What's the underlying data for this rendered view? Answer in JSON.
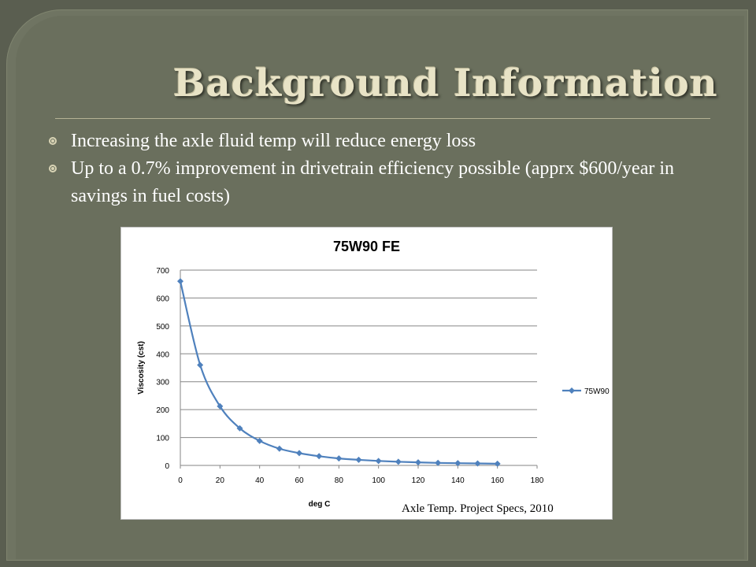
{
  "slide": {
    "title": "Background Information",
    "bullets": [
      "Increasing the axle fluid temp will reduce energy loss",
      "Up to a 0.7% improvement in drivetrain efficiency possible (apprx $600/year in savings in fuel costs)"
    ],
    "citation": "Axle Temp. Project Specs, 2010",
    "colors": {
      "background": "#6a6f5d",
      "title": "#e8e3c6",
      "text": "#ffffff",
      "series": "#4f81bd"
    }
  },
  "chart_data": {
    "type": "line",
    "title": "75W90 FE",
    "xlabel": "deg C",
    "ylabel": "Viscosity (cst)",
    "xlim": [
      0,
      180
    ],
    "ylim": [
      0,
      700
    ],
    "x_ticks": [
      0,
      20,
      40,
      60,
      80,
      100,
      120,
      140,
      160,
      180
    ],
    "y_ticks": [
      0,
      100,
      200,
      300,
      400,
      500,
      600,
      700
    ],
    "grid": true,
    "legend": "right",
    "series": [
      {
        "name": "75W90 FE",
        "color": "#4f81bd",
        "x": [
          0,
          10,
          20,
          30,
          40,
          50,
          60,
          70,
          80,
          90,
          100,
          110,
          120,
          130,
          140,
          150,
          160
        ],
        "y": [
          660,
          360,
          212,
          133,
          88,
          60,
          44,
          33,
          25,
          20,
          16,
          13,
          11,
          9,
          8,
          7,
          6
        ]
      }
    ]
  }
}
